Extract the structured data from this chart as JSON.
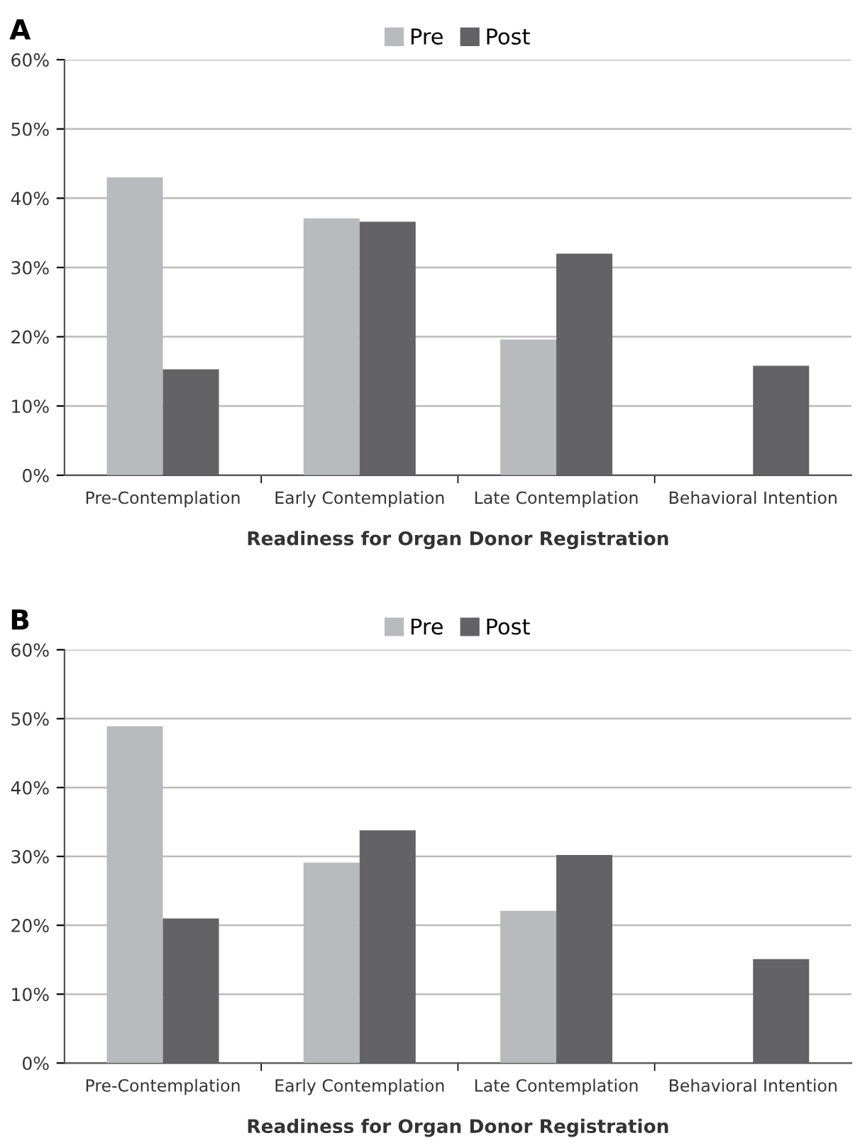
{
  "chart_data": [
    {
      "type": "bar",
      "title": "A",
      "xlabel": "Readiness for Organ Donor Registration",
      "categories": [
        "Pre-Contemplation",
        "Early Contemplation",
        "Late Contemplation",
        "Behavioral Intention"
      ],
      "series": [
        {
          "name": "Pre",
          "color": "#b9babd",
          "values": [
            43.0,
            37.1,
            19.6,
            0
          ]
        },
        {
          "name": "Post",
          "color": "#636366",
          "values": [
            15.3,
            36.6,
            32.0,
            15.8
          ]
        }
      ],
      "ylim": [
        0,
        60
      ],
      "yticks": [
        {
          "value": 0,
          "label": "0%"
        },
        {
          "value": 10,
          "label": "10%"
        },
        {
          "value": 20,
          "label": "20%"
        },
        {
          "value": 30,
          "label": "30%"
        },
        {
          "value": 40,
          "label": "40%"
        },
        {
          "value": 50,
          "label": "50%"
        },
        {
          "value": 60,
          "label": "60%"
        }
      ],
      "grid": "y",
      "legend": "top"
    },
    {
      "type": "bar",
      "title": "B",
      "xlabel": "Readiness for Organ Donor Registration",
      "categories": [
        "Pre-Contemplation",
        "Early Contemplation",
        "Late Contemplation",
        "Behavioral Intention"
      ],
      "series": [
        {
          "name": "Pre",
          "color": "#b9babd",
          "values": [
            48.9,
            29.1,
            22.1,
            0
          ]
        },
        {
          "name": "Post",
          "color": "#636366",
          "values": [
            21.0,
            33.8,
            30.2,
            15.1
          ]
        }
      ],
      "ylim": [
        0,
        60
      ],
      "yticks": [
        {
          "value": 0,
          "label": "0%"
        },
        {
          "value": 10,
          "label": "10%"
        },
        {
          "value": 20,
          "label": "20%"
        },
        {
          "value": 30,
          "label": "30%"
        },
        {
          "value": 40,
          "label": "40%"
        },
        {
          "value": 50,
          "label": "50%"
        },
        {
          "value": 60,
          "label": "60%"
        }
      ],
      "grid": "y",
      "legend": "top"
    }
  ]
}
